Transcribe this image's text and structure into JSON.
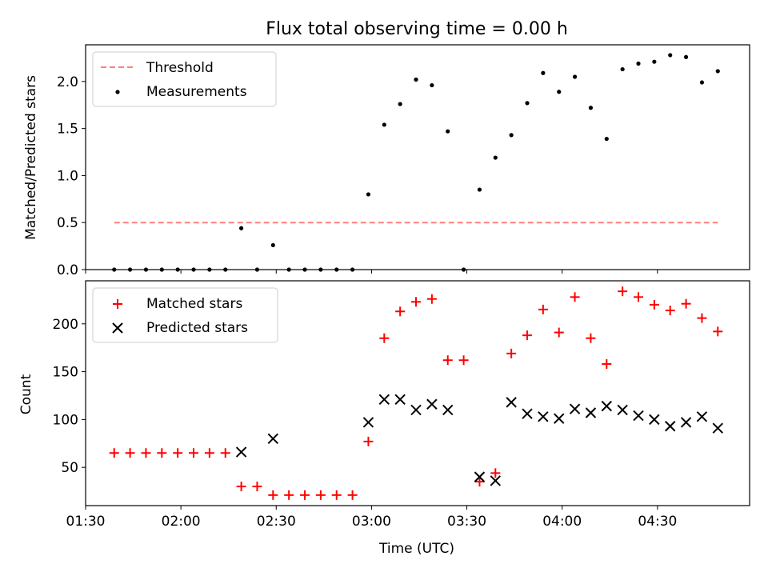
{
  "chart_data": [
    {
      "type": "scatter",
      "title": "Flux total observing time = 0.00 h",
      "ylabel": "Matched/Predicted stars",
      "xlabel": "",
      "ylim": [
        0,
        2.39
      ],
      "yticks": [
        0.0,
        0.5,
        1.0,
        1.5,
        2.0
      ],
      "ytick_labels": [
        "0.0",
        "0.5",
        "1.0",
        "1.5",
        "2.0"
      ],
      "legend_position": "upper-left",
      "threshold": {
        "name": "Threshold",
        "color": "#ff7f7f",
        "y": 0.5,
        "x_start": "01:39",
        "x_end": "04:49"
      },
      "series": [
        {
          "name": "Measurements",
          "color": "#000000",
          "x": [
            "01:39",
            "01:44",
            "01:49",
            "01:54",
            "01:59",
            "02:04",
            "02:09",
            "02:14",
            "02:19",
            "02:24",
            "02:29",
            "02:34",
            "02:39",
            "02:44",
            "02:49",
            "02:54",
            "02:59",
            "03:04",
            "03:09",
            "03:14",
            "03:19",
            "03:24",
            "03:29",
            "03:34",
            "03:39",
            "03:44",
            "03:49",
            "03:54",
            "03:59",
            "04:04",
            "04:09",
            "04:14",
            "04:19",
            "04:24",
            "04:29",
            "04:34",
            "04:39",
            "04:44",
            "04:49"
          ],
          "y": [
            0,
            0,
            0,
            0,
            0,
            0,
            0,
            0,
            0.44,
            0,
            0.26,
            0,
            0,
            0,
            0,
            0,
            0.8,
            1.54,
            1.76,
            2.02,
            1.96,
            1.47,
            0,
            0.85,
            1.19,
            1.43,
            1.77,
            2.09,
            1.89,
            2.05,
            1.72,
            1.39,
            2.13,
            2.19,
            2.21,
            2.28,
            2.26,
            1.99,
            2.11
          ]
        }
      ]
    },
    {
      "type": "scatter",
      "title": "",
      "ylabel": "Count",
      "xlabel": "Time (UTC)",
      "ylim": [
        10,
        245
      ],
      "yticks": [
        50,
        100,
        150,
        200
      ],
      "ytick_labels": [
        "50",
        "100",
        "150",
        "200"
      ],
      "x_range": [
        "01:30",
        "04:59"
      ],
      "xtick_labels": [
        "01:30",
        "02:00",
        "02:30",
        "03:00",
        "03:30",
        "04:00",
        "04:30"
      ],
      "legend_position": "upper-left",
      "series": [
        {
          "name": "Matched stars",
          "color": "#ff0000",
          "marker": "plus",
          "x": [
            "01:39",
            "01:44",
            "01:49",
            "01:54",
            "01:59",
            "02:04",
            "02:09",
            "02:14",
            "02:19",
            "02:24",
            "02:29",
            "02:34",
            "02:39",
            "02:44",
            "02:49",
            "02:54",
            "02:59",
            "03:04",
            "03:09",
            "03:14",
            "03:19",
            "03:24",
            "03:29",
            "03:34",
            "03:39",
            "03:44",
            "03:49",
            "03:54",
            "03:59",
            "04:04",
            "04:09",
            "04:14",
            "04:19",
            "04:24",
            "04:29",
            "04:34",
            "04:39",
            "04:44",
            "04:49"
          ],
          "y": [
            65,
            65,
            65,
            65,
            65,
            65,
            65,
            65,
            30,
            30,
            21,
            21,
            21,
            21,
            21,
            21,
            77,
            185,
            213,
            223,
            226,
            162,
            162,
            35,
            44,
            169,
            188,
            215,
            191,
            228,
            185,
            158,
            234,
            228,
            220,
            214,
            221,
            206,
            192
          ]
        },
        {
          "name": "Predicted stars",
          "color": "#000000",
          "marker": "x",
          "x": [
            "02:19",
            "02:29",
            "02:59",
            "03:04",
            "03:09",
            "03:14",
            "03:19",
            "03:24",
            "03:34",
            "03:39",
            "03:44",
            "03:49",
            "03:54",
            "03:59",
            "04:04",
            "04:09",
            "04:14",
            "04:19",
            "04:24",
            "04:29",
            "04:34",
            "04:39",
            "04:44",
            "04:49"
          ],
          "y": [
            66,
            80,
            97,
            121,
            121,
            110,
            116,
            110,
            40,
            36,
            118,
            106,
            103,
            101,
            111,
            107,
            114,
            110,
            104,
            100,
            93,
            97,
            103,
            91
          ]
        }
      ]
    }
  ]
}
